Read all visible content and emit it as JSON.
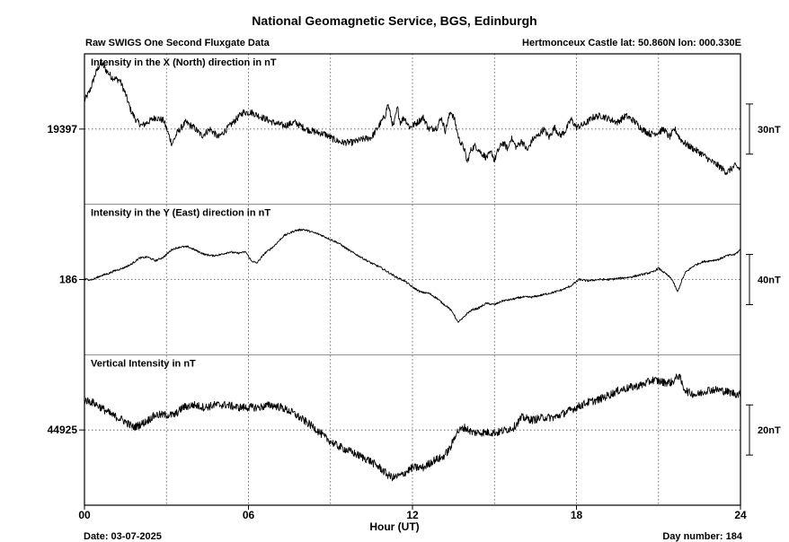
{
  "title": "National Geomagnetic Service, BGS, Edinburgh",
  "subtitle": "Raw SWIGS One Second Fluxgate Data",
  "station": "Hertmonceux Castle  lat: 50.860N lon: 000.330E",
  "xlabel": "Hour (UT)",
  "date_text": "Date: 03-07-2025",
  "day_text": "Day number:  184",
  "chart_data": {
    "type": "line",
    "x_range_hours": [
      0,
      24
    ],
    "x_ticks": [
      "00",
      "06",
      "12",
      "18",
      "24"
    ],
    "grid": true,
    "panels": [
      {
        "label": "Intensity in the X (North) direction in nT",
        "y_tick": "19397",
        "scale_bar": "30nT",
        "nT_per_division": 30,
        "center_value": 19397,
        "noise": 2.0,
        "series": [
          [
            0,
            19414
          ],
          [
            0.2,
            19420
          ],
          [
            0.4,
            19430
          ],
          [
            0.6,
            19437
          ],
          [
            0.8,
            19432
          ],
          [
            1.0,
            19428
          ],
          [
            1.3,
            19426
          ],
          [
            1.5,
            19418
          ],
          [
            1.7,
            19408
          ],
          [
            1.9,
            19402
          ],
          [
            2.1,
            19399
          ],
          [
            2.4,
            19402
          ],
          [
            2.6,
            19404
          ],
          [
            2.9,
            19402
          ],
          [
            3.05,
            19395
          ],
          [
            3.2,
            19388
          ],
          [
            3.4,
            19395
          ],
          [
            3.7,
            19401
          ],
          [
            4.0,
            19398
          ],
          [
            4.3,
            19393
          ],
          [
            4.6,
            19397
          ],
          [
            4.9,
            19392
          ],
          [
            5.2,
            19397
          ],
          [
            5.5,
            19402
          ],
          [
            5.8,
            19407
          ],
          [
            6.1,
            19407
          ],
          [
            6.5,
            19404
          ],
          [
            6.9,
            19401
          ],
          [
            7.3,
            19399
          ],
          [
            7.7,
            19401
          ],
          [
            8.1,
            19397
          ],
          [
            8.5,
            19395
          ],
          [
            8.8,
            19394
          ],
          [
            9.1,
            19391
          ],
          [
            9.4,
            19389
          ],
          [
            9.8,
            19389
          ],
          [
            10.2,
            19391
          ],
          [
            10.5,
            19392
          ],
          [
            10.7,
            19397
          ],
          [
            11.0,
            19405
          ],
          [
            11.1,
            19412
          ],
          [
            11.2,
            19405
          ],
          [
            11.3,
            19398
          ],
          [
            11.45,
            19410
          ],
          [
            11.55,
            19401
          ],
          [
            11.7,
            19404
          ],
          [
            11.9,
            19398
          ],
          [
            12.1,
            19400
          ],
          [
            12.4,
            19404
          ],
          [
            12.6,
            19397
          ],
          [
            12.9,
            19398
          ],
          [
            13.05,
            19404
          ],
          [
            13.2,
            19396
          ],
          [
            13.4,
            19408
          ],
          [
            13.55,
            19402
          ],
          [
            13.7,
            19391
          ],
          [
            13.9,
            19385
          ],
          [
            14.0,
            19377
          ],
          [
            14.15,
            19385
          ],
          [
            14.3,
            19387
          ],
          [
            14.5,
            19383
          ],
          [
            14.7,
            19380
          ],
          [
            14.9,
            19383
          ],
          [
            15.0,
            19378
          ],
          [
            15.1,
            19383
          ],
          [
            15.3,
            19389
          ],
          [
            15.5,
            19385
          ],
          [
            15.6,
            19392
          ],
          [
            15.8,
            19386
          ],
          [
            16.0,
            19390
          ],
          [
            16.2,
            19384
          ],
          [
            16.4,
            19391
          ],
          [
            16.6,
            19393
          ],
          [
            16.8,
            19397
          ],
          [
            17.0,
            19392
          ],
          [
            17.2,
            19398
          ],
          [
            17.4,
            19393
          ],
          [
            17.6,
            19396
          ],
          [
            17.8,
            19403
          ],
          [
            18.0,
            19398
          ],
          [
            18.3,
            19400
          ],
          [
            18.6,
            19404
          ],
          [
            18.9,
            19405
          ],
          [
            19.2,
            19403
          ],
          [
            19.5,
            19401
          ],
          [
            19.8,
            19405
          ],
          [
            20.1,
            19402
          ],
          [
            20.4,
            19397
          ],
          [
            20.7,
            19394
          ],
          [
            21.0,
            19395
          ],
          [
            21.2,
            19397
          ],
          [
            21.4,
            19392
          ],
          [
            21.6,
            19397
          ],
          [
            21.8,
            19391
          ],
          [
            22.0,
            19388
          ],
          [
            22.3,
            19385
          ],
          [
            22.6,
            19382
          ],
          [
            22.9,
            19378
          ],
          [
            23.2,
            19375
          ],
          [
            23.5,
            19371
          ],
          [
            23.8,
            19375
          ],
          [
            24.0,
            19373
          ]
        ]
      },
      {
        "label": "Intensity in the Y (East) direction in nT",
        "y_tick": "186",
        "scale_bar": "40nT",
        "nT_per_division": 40,
        "center_value": 186,
        "noise": 0.8,
        "series": [
          [
            0,
            186
          ],
          [
            0.3,
            186
          ],
          [
            0.6,
            189
          ],
          [
            0.9,
            191
          ],
          [
            1.1,
            193
          ],
          [
            1.4,
            195
          ],
          [
            1.7,
            198
          ],
          [
            2.0,
            203
          ],
          [
            2.3,
            204
          ],
          [
            2.6,
            201
          ],
          [
            2.9,
            204
          ],
          [
            3.2,
            210
          ],
          [
            3.5,
            212
          ],
          [
            3.8,
            212
          ],
          [
            4.1,
            209
          ],
          [
            4.4,
            206
          ],
          [
            4.7,
            205
          ],
          [
            5.0,
            206
          ],
          [
            5.3,
            208
          ],
          [
            5.6,
            207
          ],
          [
            5.9,
            208
          ],
          [
            6.1,
            201
          ],
          [
            6.3,
            199
          ],
          [
            6.6,
            207
          ],
          [
            6.9,
            212
          ],
          [
            7.3,
            221
          ],
          [
            7.7,
            225
          ],
          [
            8.0,
            226
          ],
          [
            8.3,
            224
          ],
          [
            8.6,
            222
          ],
          [
            8.9,
            219
          ],
          [
            9.3,
            215
          ],
          [
            9.7,
            209
          ],
          [
            10.1,
            204
          ],
          [
            10.5,
            199
          ],
          [
            10.8,
            196
          ],
          [
            11.1,
            192
          ],
          [
            11.4,
            188
          ],
          [
            11.7,
            185
          ],
          [
            12.0,
            180
          ],
          [
            12.3,
            176
          ],
          [
            12.6,
            175
          ],
          [
            12.9,
            171
          ],
          [
            13.1,
            167
          ],
          [
            13.3,
            164
          ],
          [
            13.5,
            159
          ],
          [
            13.65,
            152
          ],
          [
            13.8,
            154
          ],
          [
            14.0,
            159
          ],
          [
            14.2,
            162
          ],
          [
            14.4,
            163
          ],
          [
            14.7,
            167
          ],
          [
            15.0,
            166
          ],
          [
            15.3,
            169
          ],
          [
            15.6,
            170
          ],
          [
            16.0,
            172
          ],
          [
            16.4,
            172
          ],
          [
            16.8,
            174
          ],
          [
            17.2,
            176
          ],
          [
            17.5,
            178
          ],
          [
            17.8,
            181
          ],
          [
            18.1,
            186
          ],
          [
            18.4,
            185
          ],
          [
            18.8,
            186
          ],
          [
            19.2,
            186
          ],
          [
            19.6,
            187
          ],
          [
            20.0,
            188
          ],
          [
            20.4,
            190
          ],
          [
            20.8,
            192
          ],
          [
            21.0,
            195
          ],
          [
            21.3,
            190
          ],
          [
            21.5,
            186
          ],
          [
            21.6,
            181
          ],
          [
            21.7,
            176
          ],
          [
            21.85,
            185
          ],
          [
            22.0,
            192
          ],
          [
            22.3,
            197
          ],
          [
            22.6,
            200
          ],
          [
            22.9,
            201
          ],
          [
            23.2,
            202
          ],
          [
            23.5,
            205
          ],
          [
            23.8,
            206
          ],
          [
            24.0,
            210
          ]
        ]
      },
      {
        "label": "Vertical Intensity in nT",
        "y_tick": "44925",
        "scale_bar": "20nT",
        "nT_per_division": 20,
        "center_value": 44925,
        "noise": 1.6,
        "series": [
          [
            0,
            44937
          ],
          [
            0.3,
            44936
          ],
          [
            0.6,
            44934
          ],
          [
            1.0,
            44931
          ],
          [
            1.4,
            44929
          ],
          [
            1.8,
            44926
          ],
          [
            2.2,
            44928
          ],
          [
            2.6,
            44931
          ],
          [
            3.0,
            44931
          ],
          [
            3.3,
            44931
          ],
          [
            3.6,
            44934
          ],
          [
            4.0,
            44935
          ],
          [
            4.4,
            44934
          ],
          [
            4.8,
            44935
          ],
          [
            5.2,
            44935
          ],
          [
            5.6,
            44934
          ],
          [
            6.0,
            44934
          ],
          [
            6.4,
            44934
          ],
          [
            6.8,
            44935
          ],
          [
            7.2,
            44934
          ],
          [
            7.6,
            44932
          ],
          [
            8.0,
            44929
          ],
          [
            8.4,
            44926
          ],
          [
            8.8,
            44922
          ],
          [
            9.2,
            44919
          ],
          [
            9.6,
            44917
          ],
          [
            10.0,
            44915
          ],
          [
            10.4,
            44913
          ],
          [
            10.8,
            44910
          ],
          [
            11.1,
            44907
          ],
          [
            11.3,
            44906
          ],
          [
            11.6,
            44907
          ],
          [
            12.0,
            44910
          ],
          [
            12.4,
            44910
          ],
          [
            12.8,
            44913
          ],
          [
            13.1,
            44914
          ],
          [
            13.4,
            44918
          ],
          [
            13.6,
            44924
          ],
          [
            13.9,
            44926
          ],
          [
            14.2,
            44924
          ],
          [
            14.5,
            44924
          ],
          [
            14.8,
            44924
          ],
          [
            15.1,
            44924
          ],
          [
            15.4,
            44925
          ],
          [
            15.7,
            44926
          ],
          [
            16.0,
            44930
          ],
          [
            16.4,
            44929
          ],
          [
            16.8,
            44930
          ],
          [
            17.2,
            44930
          ],
          [
            17.6,
            44932
          ],
          [
            18.0,
            44934
          ],
          [
            18.4,
            44936
          ],
          [
            18.8,
            44937
          ],
          [
            19.2,
            44939
          ],
          [
            19.6,
            44941
          ],
          [
            20.0,
            44942
          ],
          [
            20.4,
            44943
          ],
          [
            20.8,
            44945
          ],
          [
            21.2,
            44944
          ],
          [
            21.5,
            44944
          ],
          [
            21.75,
            44947
          ],
          [
            21.9,
            44942
          ],
          [
            22.1,
            44940
          ],
          [
            22.4,
            44939
          ],
          [
            22.8,
            44941
          ],
          [
            23.2,
            44941
          ],
          [
            23.6,
            44940
          ],
          [
            24.0,
            44939
          ]
        ]
      }
    ]
  }
}
